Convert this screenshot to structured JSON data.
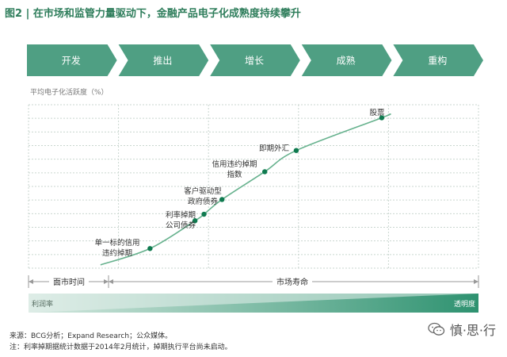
{
  "title": "图2 | 在市场和监管力量驱动下，金融产品电子化成熟度持续攀升",
  "colors": {
    "stage_fill": "#4f9f83",
    "stage_text": "#ffffff",
    "title": "#2e7d5b",
    "grid": "#c9d6cf",
    "curve": "#67b28e",
    "point": "#0f7a4f",
    "bottom_bar": "#2e9270"
  },
  "chart_data": {
    "type": "line",
    "stages": [
      "开发",
      "推出",
      "增长",
      "成熟",
      "重构"
    ],
    "ylabel": "平均电子化活跃度（%）",
    "points": [
      {
        "label": "单一标的信用\n违约掉期",
        "x": 0.27,
        "y": 0.12
      },
      {
        "label": "利率掉期\n公司债券",
        "x": 0.37,
        "y": 0.29
      },
      {
        "label": "利率掉期\n公司债券",
        "x": 0.39,
        "y": 0.33
      },
      {
        "label": "客户驱动型\n政府债券",
        "x": 0.43,
        "y": 0.42
      },
      {
        "label": "信用违约掉期\n指数",
        "x": 0.525,
        "y": 0.59
      },
      {
        "label": "即期外汇",
        "x": 0.595,
        "y": 0.72
      },
      {
        "label": "股票",
        "x": 0.785,
        "y": 0.92
      }
    ],
    "annotations": [
      "单一标的信用\n违约掉期",
      "利率掉期\n公司债券",
      "客户驱动型\n政府债券",
      "信用违约掉期\n指数",
      "即期外汇",
      "股票"
    ],
    "x_segments": [
      "面市时间",
      "市场寿命"
    ],
    "bottom_left": "利润率",
    "bottom_right": "透明度"
  },
  "footer": {
    "source": "来源：BCG分析；Expand Research；公众媒体。",
    "note": "注：利率掉期据统计数据于2014年2月统计，掉期执行平台尚未启动。"
  },
  "watermark": "慎·思·行",
  "icon": "wechat-icon"
}
